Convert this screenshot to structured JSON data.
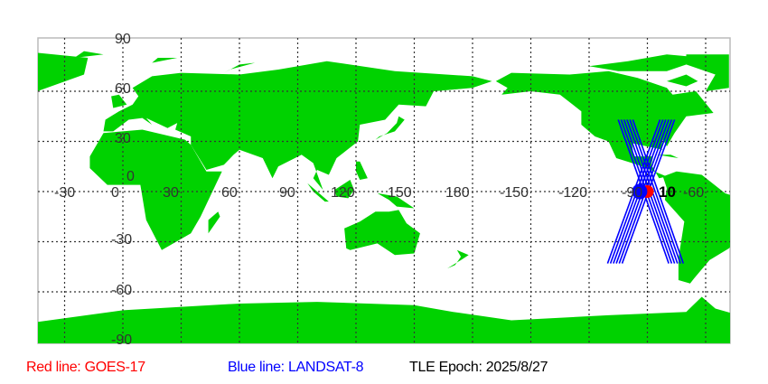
{
  "map": {
    "projection": "equirectangular",
    "land_color": "#00d200",
    "ocean_color": "#ffffff",
    "grid": true,
    "lon_ticks": [
      "-30",
      "0",
      "30",
      "60",
      "90",
      "120",
      "150",
      "180",
      "-150",
      "-120",
      "-90",
      "-60"
    ],
    "lat_ticks": [
      "90",
      "60",
      "30",
      "0",
      "-30",
      "-60",
      "-90"
    ],
    "overlap_label": "10"
  },
  "satellites": [
    {
      "name": "GOES-17",
      "color": "#ff0000",
      "lon": -90,
      "lat": 0
    },
    {
      "name": "LANDSAT-8",
      "color": "#0000ff",
      "lon": -94,
      "lat": 0
    }
  ],
  "legend": {
    "red": "Red line: GOES-17",
    "blue": "Blue line: LANDSAT-8",
    "epoch": "TLE Epoch: 2025/8/27"
  }
}
